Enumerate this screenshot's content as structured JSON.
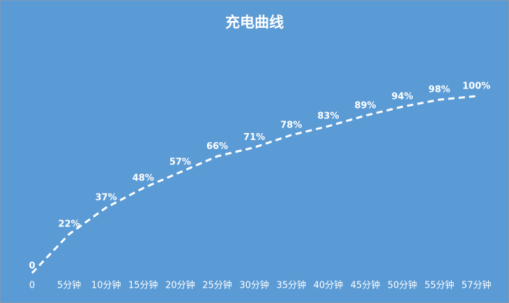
{
  "chart_data": {
    "type": "line",
    "title": "充电曲线",
    "categories": [
      "0",
      "5分钟",
      "10分钟",
      "15分钟",
      "20分钟",
      "25分钟",
      "30分钟",
      "35分钟",
      "40分钟",
      "45分钟",
      "50分钟",
      "55分钟",
      "57分钟"
    ],
    "values": [
      0,
      22,
      37,
      48,
      57,
      66,
      71,
      78,
      83,
      89,
      94,
      98,
      100
    ],
    "value_labels": [
      "0",
      "22%",
      "37%",
      "48%",
      "57%",
      "66%",
      "71%",
      "78%",
      "83%",
      "89%",
      "94%",
      "98%",
      "100%"
    ],
    "color": "#ffffff",
    "ylim": [
      0,
      100
    ]
  }
}
